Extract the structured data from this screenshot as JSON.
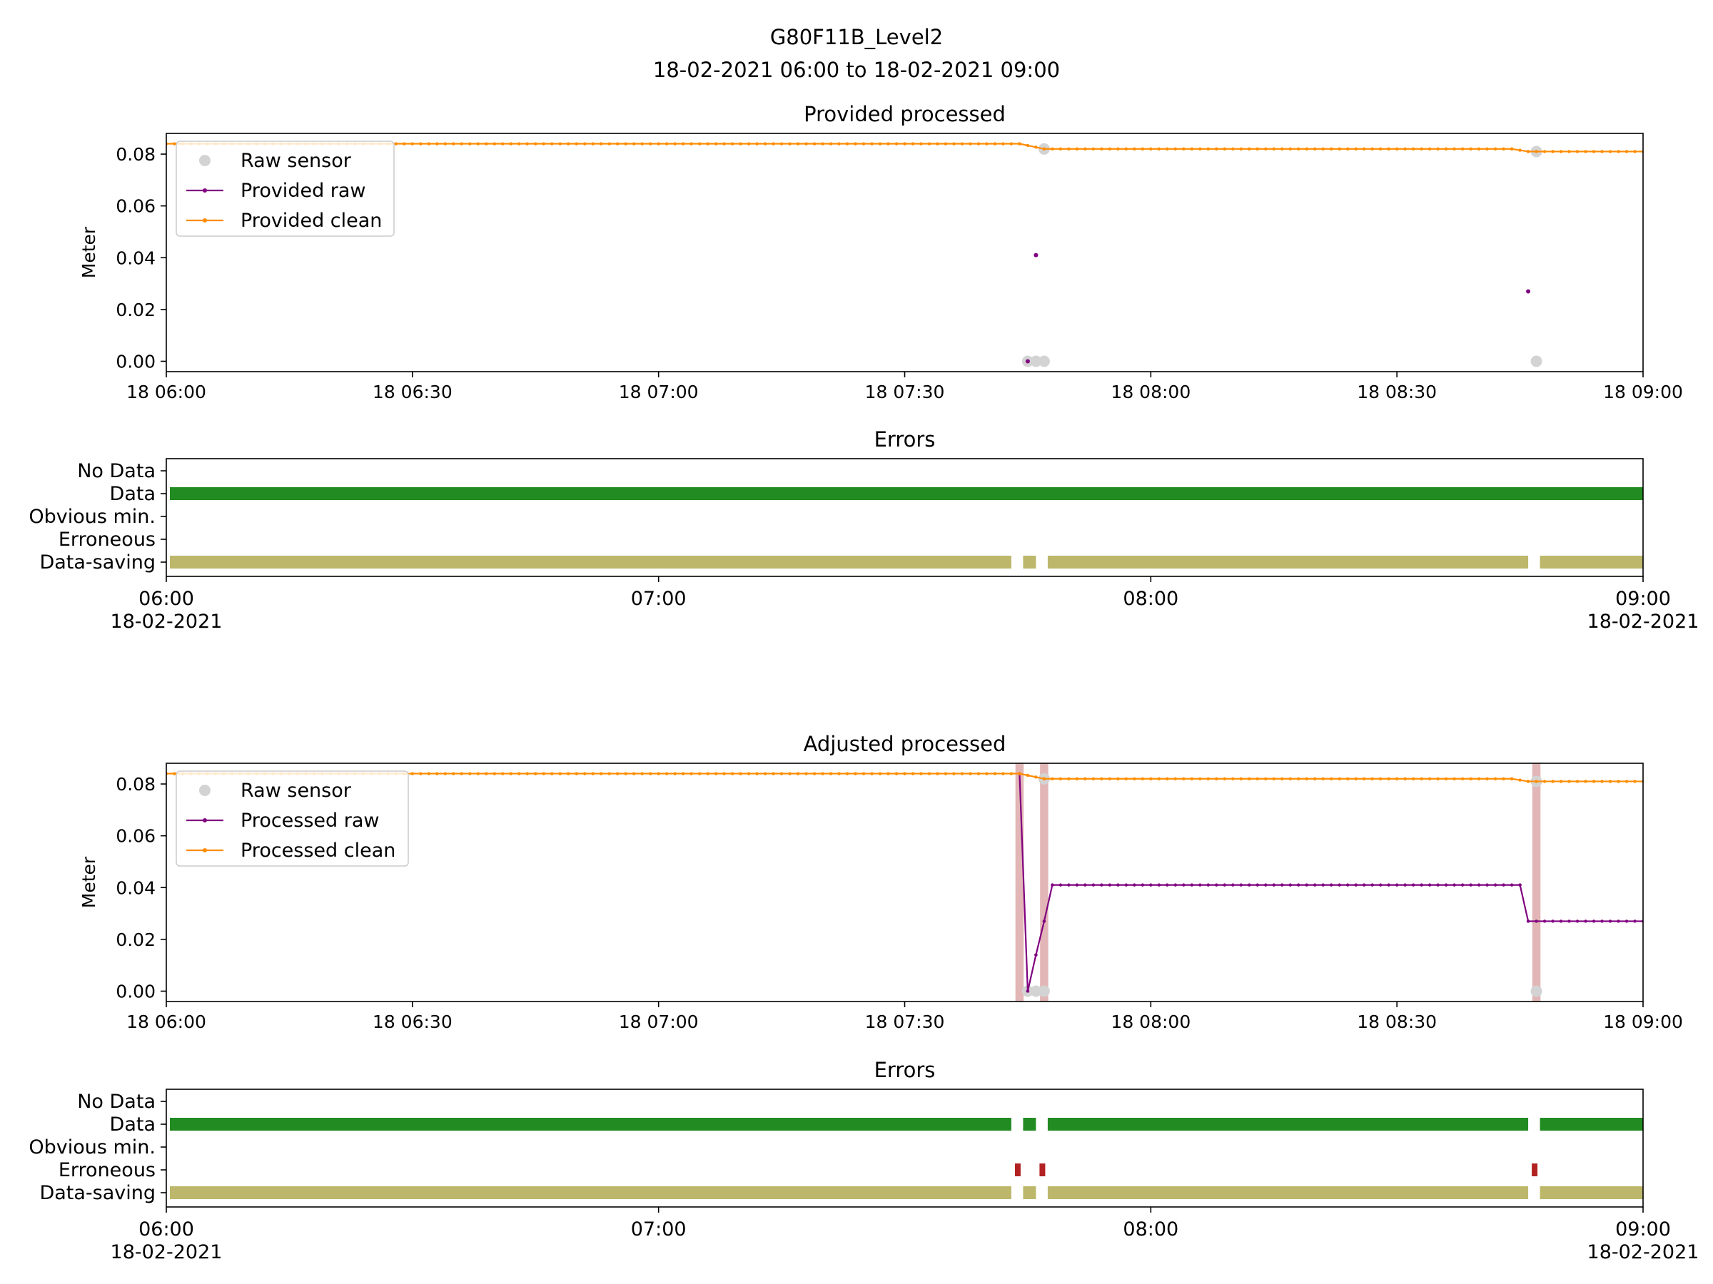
{
  "figure": {
    "title": "G80F11B_Level2",
    "subtitle": "18-02-2021 06:00 to 18-02-2021 09:00"
  },
  "colors": {
    "raw_sensor": "#d3d3d3",
    "raw": "#800080",
    "clean": "#ff8c00",
    "data_bar": "#228b22",
    "saving_bar": "#bdb76b",
    "erroneous_bar": "#b22222",
    "error_band": "#e2b6b6"
  },
  "chart_data": [
    {
      "id": "provided",
      "type": "line",
      "title": "Provided processed",
      "ylabel": "Meter",
      "xlim": [
        "2021-02-18 06:00",
        "2021-02-18 09:00"
      ],
      "ylim": [
        -0.004,
        0.088
      ],
      "x_tick_labels": [
        "18 06:00",
        "18 06:30",
        "18 07:00",
        "18 07:30",
        "18 08:00",
        "18 08:30",
        "18 09:00"
      ],
      "y_tick_labels": [
        "0.00",
        "0.02",
        "0.04",
        "0.06",
        "0.08"
      ],
      "legend": [
        "Raw sensor",
        "Provided raw",
        "Provided clean"
      ],
      "legend_position": "upper-left",
      "series": [
        {
          "name": "Raw sensor",
          "style": "scatter",
          "points": [
            [
              "07:45",
              0.0
            ],
            [
              "07:46",
              0.0
            ],
            [
              "07:47",
              0.0
            ],
            [
              "07:47",
              0.082
            ],
            [
              "08:47",
              0.0
            ],
            [
              "08:47",
              0.081
            ]
          ]
        },
        {
          "name": "Provided raw",
          "style": "dots",
          "points": [
            [
              "07:45",
              0.0
            ],
            [
              "07:46",
              0.041
            ],
            [
              "08:46",
              0.027
            ]
          ]
        },
        {
          "name": "Provided clean",
          "style": "line",
          "segments": [
            [
              [
                "06:00",
                0.084
              ],
              [
                "07:44",
                0.084
              ],
              [
                "07:47",
                0.082
              ],
              [
                "08:44",
                0.082
              ],
              [
                "08:46",
                0.081
              ],
              [
                "09:00",
                0.081
              ]
            ]
          ]
        }
      ]
    },
    {
      "id": "provided_errors",
      "type": "bar",
      "title": "Errors",
      "categories": [
        "No Data",
        "Data",
        "Obvious min.",
        "Erroneous",
        "Data-saving"
      ],
      "x_tick_labels": [
        "06:00\n18-02-2021",
        "07:00",
        "08:00",
        "09:00\n18-02-2021"
      ],
      "intervals": {
        "Data": [
          [
            "06:00",
            "09:00"
          ]
        ],
        "Data-saving": [
          [
            "06:00",
            "07:43"
          ],
          [
            "07:44",
            "07:46"
          ],
          [
            "07:47",
            "08:46"
          ],
          [
            "08:47",
            "09:00"
          ]
        ]
      }
    },
    {
      "id": "adjusted",
      "type": "line",
      "title": "Adjusted processed",
      "ylabel": "Meter",
      "xlim": [
        "2021-02-18 06:00",
        "2021-02-18 09:00"
      ],
      "ylim": [
        -0.004,
        0.088
      ],
      "x_tick_labels": [
        "18 06:00",
        "18 06:30",
        "18 07:00",
        "18 07:30",
        "18 08:00",
        "18 08:30",
        "18 09:00"
      ],
      "y_tick_labels": [
        "0.00",
        "0.02",
        "0.04",
        "0.06",
        "0.08"
      ],
      "legend": [
        "Raw sensor",
        "Processed raw",
        "Processed clean"
      ],
      "legend_position": "upper-left",
      "error_bands": [
        [
          "07:43.5",
          "07:44.5"
        ],
        [
          "07:46.5",
          "07:47.5"
        ],
        [
          "08:46.5",
          "08:47.5"
        ]
      ],
      "series": [
        {
          "name": "Raw sensor",
          "style": "scatter",
          "points": [
            [
              "07:45",
              0.0
            ],
            [
              "07:46",
              0.0
            ],
            [
              "07:47",
              0.0
            ],
            [
              "07:47",
              0.082
            ],
            [
              "08:47",
              0.0
            ],
            [
              "08:47",
              0.081
            ]
          ]
        },
        {
          "name": "Processed raw",
          "style": "line",
          "segments": [
            [
              [
                "07:44",
                0.084
              ],
              [
                "07:45",
                0.0
              ],
              [
                "07:46",
                0.014
              ],
              [
                "07:47",
                0.027
              ],
              [
                "07:48",
                0.041
              ],
              [
                "08:45",
                0.041
              ],
              [
                "08:46",
                0.027
              ],
              [
                "09:00",
                0.027
              ]
            ]
          ]
        },
        {
          "name": "Processed clean",
          "style": "line",
          "segments": [
            [
              [
                "06:00",
                0.084
              ],
              [
                "07:44",
                0.084
              ],
              [
                "07:47",
                0.082
              ],
              [
                "08:44",
                0.082
              ],
              [
                "08:46",
                0.081
              ],
              [
                "09:00",
                0.081
              ]
            ]
          ]
        }
      ]
    },
    {
      "id": "adjusted_errors",
      "type": "bar",
      "title": "Errors",
      "categories": [
        "No Data",
        "Data",
        "Obvious min.",
        "Erroneous",
        "Data-saving"
      ],
      "x_tick_labels": [
        "06:00\n18-02-2021",
        "07:00",
        "08:00",
        "09:00\n18-02-2021"
      ],
      "intervals": {
        "Data": [
          [
            "06:00",
            "07:43"
          ],
          [
            "07:44",
            "07:46"
          ],
          [
            "07:47",
            "08:46"
          ],
          [
            "08:47",
            "09:00"
          ]
        ],
        "Erroneous": [
          [
            "07:43",
            "07:44"
          ],
          [
            "07:46",
            "07:47"
          ],
          [
            "08:46",
            "08:47"
          ]
        ],
        "Data-saving": [
          [
            "06:00",
            "07:43"
          ],
          [
            "07:44",
            "07:46"
          ],
          [
            "07:47",
            "08:46"
          ],
          [
            "08:47",
            "09:00"
          ]
        ]
      }
    }
  ]
}
